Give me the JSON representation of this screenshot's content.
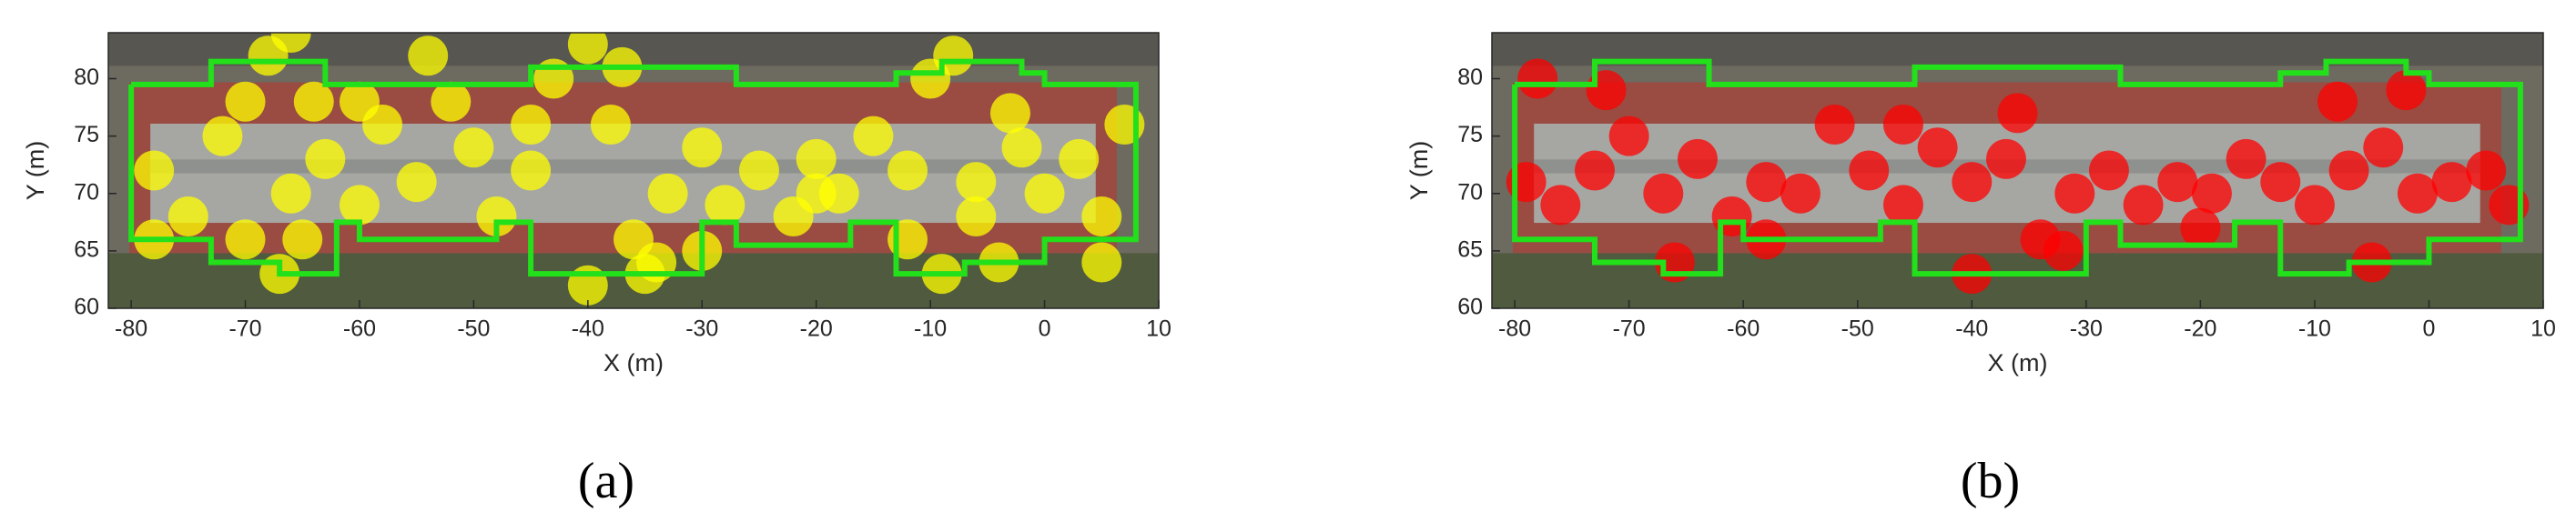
{
  "chart_data": [
    {
      "type": "scatter",
      "panel_label": "(a)",
      "xlabel": "X (m)",
      "ylabel": "Y (m)",
      "xlim": [
        -82,
        10
      ],
      "ylim": [
        60,
        84
      ],
      "xticks": [
        -80,
        -70,
        -60,
        -50,
        -40,
        -30,
        -20,
        -10,
        0,
        10
      ],
      "yticks": [
        60,
        65,
        70,
        75,
        80
      ],
      "series": [
        {
          "type": "scatter",
          "color": "#ffff00",
          "x": [
            -78,
            -75,
            -72,
            -70,
            -68,
            -66,
            -65,
            -63,
            -60,
            -58,
            -55,
            -52,
            -50,
            -48,
            -45,
            -43,
            -40,
            -38,
            -36,
            -35,
            -33,
            -30,
            -28,
            -25,
            -22,
            -20,
            -18,
            -15,
            -12,
            -10,
            -8,
            -6,
            -4,
            -2,
            0,
            3,
            5,
            7,
            -67,
            -66,
            -64,
            -40,
            -37,
            -34,
            -9,
            -6,
            -3,
            -54,
            -70,
            -20,
            -30,
            -45,
            -60,
            -78,
            5,
            -12
          ],
          "y": [
            72,
            68,
            75,
            78,
            82,
            70,
            66,
            73,
            69,
            76,
            71,
            78,
            74,
            68,
            72,
            80,
            83,
            76,
            66,
            63,
            70,
            74,
            69,
            72,
            68,
            73,
            70,
            75,
            66,
            80,
            82,
            71,
            64,
            74,
            70,
            73,
            68,
            76,
            63,
            84,
            78,
            62,
            81,
            64,
            63,
            68,
            77,
            82,
            66,
            70,
            65,
            76,
            78,
            66,
            64,
            72
          ]
        },
        {
          "type": "line",
          "color": "#22e01a",
          "x": [
            -80,
            -73,
            -73,
            -63,
            -63,
            -45,
            -45,
            -27,
            -27,
            -13,
            -13,
            -9,
            -9,
            -2,
            -2,
            0,
            0,
            8,
            8,
            0,
            0,
            -7,
            -7,
            -13,
            -13,
            -17,
            -17,
            -27,
            -27,
            -30,
            -30,
            -45,
            -45,
            -48,
            -48,
            -60,
            -60,
            -62,
            -62,
            -67,
            -67,
            -73,
            -73,
            -80,
            -80
          ],
          "y": [
            79.5,
            79.5,
            81.5,
            81.5,
            79.5,
            79.5,
            81,
            81,
            79.5,
            79.5,
            80.5,
            80.5,
            81.5,
            81.5,
            80.5,
            80.5,
            79.5,
            79.5,
            66,
            66,
            64,
            64,
            63,
            63,
            67.5,
            67.5,
            65.5,
            65.5,
            67.5,
            67.5,
            63,
            63,
            67.5,
            67.5,
            66,
            66,
            67.5,
            67.5,
            63,
            63,
            64,
            64,
            66,
            66,
            79.5
          ]
        }
      ]
    },
    {
      "type": "scatter",
      "panel_label": "(b)",
      "xlabel": "X (m)",
      "ylabel": "Y (m)",
      "xlim": [
        -82,
        10
      ],
      "ylim": [
        60,
        84
      ],
      "xticks": [
        -80,
        -70,
        -60,
        -50,
        -40,
        -30,
        -20,
        -10,
        0,
        10
      ],
      "yticks": [
        60,
        65,
        70,
        75,
        80
      ],
      "series": [
        {
          "type": "scatter",
          "color": "#ff0000",
          "x": [
            -79,
            -76,
            -73,
            -70,
            -67,
            -64,
            -61,
            -58,
            -55,
            -52,
            -49,
            -46,
            -43,
            -40,
            -37,
            -34,
            -31,
            -28,
            -25,
            -22,
            -19,
            -16,
            -13,
            -10,
            -7,
            -4,
            -1,
            2,
            5,
            7,
            -72,
            -66,
            -40,
            -36,
            -32,
            -8,
            -5,
            -46,
            -58,
            -20,
            -78,
            -2
          ],
          "y": [
            71,
            69,
            72,
            75,
            70,
            73,
            68,
            71,
            70,
            76,
            72,
            69,
            74,
            71,
            73,
            66,
            70,
            72,
            69,
            71,
            70,
            73,
            71,
            69,
            72,
            74,
            70,
            71,
            72,
            69,
            79,
            64,
            63,
            77,
            65,
            78,
            64,
            76,
            66,
            67,
            80,
            79
          ]
        },
        {
          "type": "line",
          "color": "#22e01a",
          "x": [
            -80,
            -73,
            -73,
            -63,
            -63,
            -45,
            -45,
            -27,
            -27,
            -13,
            -13,
            -9,
            -9,
            -2,
            -2,
            0,
            0,
            8,
            8,
            0,
            0,
            -7,
            -7,
            -13,
            -13,
            -17,
            -17,
            -27,
            -27,
            -30,
            -30,
            -45,
            -45,
            -48,
            -48,
            -60,
            -60,
            -62,
            -62,
            -67,
            -67,
            -73,
            -73,
            -80,
            -80
          ],
          "y": [
            79.5,
            79.5,
            81.5,
            81.5,
            79.5,
            79.5,
            81,
            81,
            79.5,
            79.5,
            80.5,
            80.5,
            81.5,
            81.5,
            80.5,
            80.5,
            79.5,
            79.5,
            66,
            66,
            64,
            64,
            63,
            63,
            67.5,
            67.5,
            65.5,
            65.5,
            67.5,
            67.5,
            63,
            63,
            67.5,
            67.5,
            66,
            66,
            67.5,
            67.5,
            63,
            63,
            64,
            64,
            66,
            66,
            79.5
          ]
        }
      ]
    }
  ]
}
